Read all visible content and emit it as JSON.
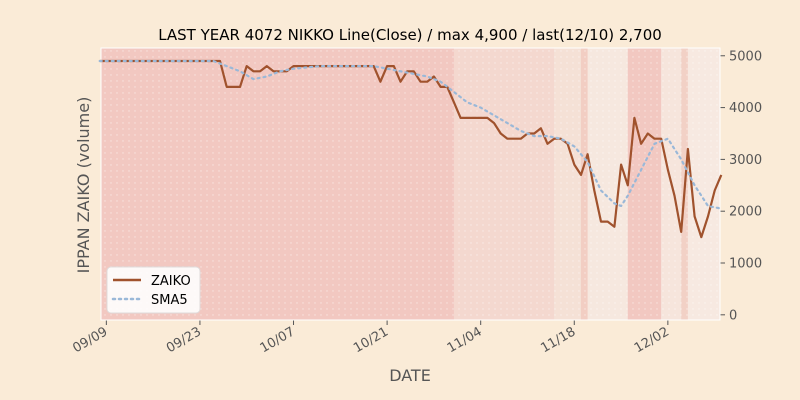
{
  "chart_data": {
    "type": "line",
    "title": "LAST YEAR 4072 NIKKO Line(Close) / max 4,900 / last(12/10) 2,700",
    "xlabel": "DATE",
    "ylabel": "IPPAN ZAIKO (volume)",
    "x_tick_labels": [
      "09/09",
      "09/23",
      "10/07",
      "10/21",
      "11/04",
      "11/18",
      "12/02"
    ],
    "y_tick_labels": [
      "0",
      "1000",
      "2000",
      "3000",
      "4000",
      "5000"
    ],
    "y_ticks": [
      0,
      1000,
      2000,
      3000,
      4000,
      5000
    ],
    "ylim": [
      -100,
      5150
    ],
    "x_range_days": [
      -0.8,
      91.8
    ],
    "x_tick_days": [
      0,
      14,
      28,
      42,
      56,
      70,
      84
    ],
    "x_start_date": "09/09",
    "legend_position": "lower-left",
    "grid": false,
    "series": [
      {
        "name": "ZAIKO",
        "color": "#a0522d",
        "style": "solid",
        "points": [
          [
            -1,
            4900
          ],
          [
            0,
            4900
          ],
          [
            2,
            4900
          ],
          [
            4,
            4900
          ],
          [
            6,
            4900
          ],
          [
            8,
            4900
          ],
          [
            10,
            4900
          ],
          [
            12,
            4900
          ],
          [
            14,
            4900
          ],
          [
            16,
            4900
          ],
          [
            17,
            4900
          ],
          [
            18,
            4400
          ],
          [
            19,
            4400
          ],
          [
            20,
            4400
          ],
          [
            21,
            4800
          ],
          [
            22,
            4700
          ],
          [
            23,
            4700
          ],
          [
            24,
            4800
          ],
          [
            25,
            4700
          ],
          [
            26,
            4700
          ],
          [
            27,
            4700
          ],
          [
            28,
            4800
          ],
          [
            30,
            4800
          ],
          [
            32,
            4800
          ],
          [
            34,
            4800
          ],
          [
            36,
            4800
          ],
          [
            38,
            4800
          ],
          [
            40,
            4800
          ],
          [
            41,
            4500
          ],
          [
            42,
            4800
          ],
          [
            43,
            4800
          ],
          [
            44,
            4500
          ],
          [
            45,
            4700
          ],
          [
            46,
            4700
          ],
          [
            47,
            4500
          ],
          [
            48,
            4500
          ],
          [
            49,
            4600
          ],
          [
            50,
            4400
          ],
          [
            51,
            4400
          ],
          [
            52,
            4100
          ],
          [
            53,
            3800
          ],
          [
            54,
            3800
          ],
          [
            55,
            3800
          ],
          [
            56,
            3800
          ],
          [
            57,
            3800
          ],
          [
            58,
            3700
          ],
          [
            59,
            3500
          ],
          [
            60,
            3400
          ],
          [
            61,
            3400
          ],
          [
            62,
            3400
          ],
          [
            63,
            3500
          ],
          [
            64,
            3500
          ],
          [
            65,
            3600
          ],
          [
            66,
            3300
          ],
          [
            67,
            3400
          ],
          [
            68,
            3400
          ],
          [
            69,
            3300
          ],
          [
            70,
            2900
          ],
          [
            71,
            2700
          ],
          [
            72,
            3100
          ],
          [
            73,
            2400
          ],
          [
            74,
            1800
          ],
          [
            75,
            1800
          ],
          [
            76,
            1700
          ],
          [
            77,
            2900
          ],
          [
            78,
            2500
          ],
          [
            79,
            3800
          ],
          [
            80,
            3300
          ],
          [
            81,
            3500
          ],
          [
            82,
            3400
          ],
          [
            83,
            3400
          ],
          [
            84,
            2800
          ],
          [
            85,
            2300
          ],
          [
            86,
            1600
          ],
          [
            87,
            3200
          ],
          [
            88,
            1900
          ],
          [
            89,
            1500
          ],
          [
            90,
            1900
          ],
          [
            91,
            2400
          ],
          [
            92,
            2700
          ]
        ]
      },
      {
        "name": "SMA5",
        "color": "#9ab8d8",
        "style": "dotted",
        "points": [
          [
            -1,
            4900
          ],
          [
            4,
            4900
          ],
          [
            8,
            4900
          ],
          [
            12,
            4900
          ],
          [
            16,
            4900
          ],
          [
            18,
            4800
          ],
          [
            20,
            4700
          ],
          [
            22,
            4550
          ],
          [
            24,
            4600
          ],
          [
            26,
            4700
          ],
          [
            28,
            4750
          ],
          [
            32,
            4800
          ],
          [
            36,
            4800
          ],
          [
            40,
            4800
          ],
          [
            42,
            4750
          ],
          [
            44,
            4700
          ],
          [
            46,
            4650
          ],
          [
            48,
            4600
          ],
          [
            50,
            4500
          ],
          [
            52,
            4300
          ],
          [
            54,
            4100
          ],
          [
            56,
            4000
          ],
          [
            58,
            3850
          ],
          [
            60,
            3700
          ],
          [
            62,
            3550
          ],
          [
            64,
            3450
          ],
          [
            66,
            3450
          ],
          [
            68,
            3400
          ],
          [
            70,
            3250
          ],
          [
            72,
            2950
          ],
          [
            74,
            2400
          ],
          [
            76,
            2150
          ],
          [
            77,
            2100
          ],
          [
            78,
            2300
          ],
          [
            80,
            2800
          ],
          [
            82,
            3300
          ],
          [
            84,
            3400
          ],
          [
            86,
            3000
          ],
          [
            88,
            2500
          ],
          [
            90,
            2100
          ],
          [
            92,
            2050
          ]
        ]
      }
    ],
    "background_bands": [
      {
        "from": -1,
        "to": 52,
        "color": "#f0b8b0",
        "opacity": 0.7
      },
      {
        "from": 52,
        "to": 67,
        "color": "#f2cec4",
        "opacity": 0.7
      },
      {
        "from": 67,
        "to": 71,
        "color": "#f3d8cc",
        "opacity": 0.6
      },
      {
        "from": 71,
        "to": 72,
        "color": "#f0c0b4",
        "opacity": 0.7
      },
      {
        "from": 72,
        "to": 78,
        "color": "#f5e4da",
        "opacity": 0.6
      },
      {
        "from": 78,
        "to": 83,
        "color": "#f0b8b0",
        "opacity": 0.7
      },
      {
        "from": 83,
        "to": 86,
        "color": "#f5e0d6",
        "opacity": 0.6
      },
      {
        "from": 86,
        "to": 87,
        "color": "#f0c4b8",
        "opacity": 0.7
      },
      {
        "from": 87,
        "to": 93,
        "color": "#f6e6de",
        "opacity": 0.6
      }
    ],
    "plot_background": "#faebd7",
    "axes_facecolor": "#f7eee6"
  }
}
